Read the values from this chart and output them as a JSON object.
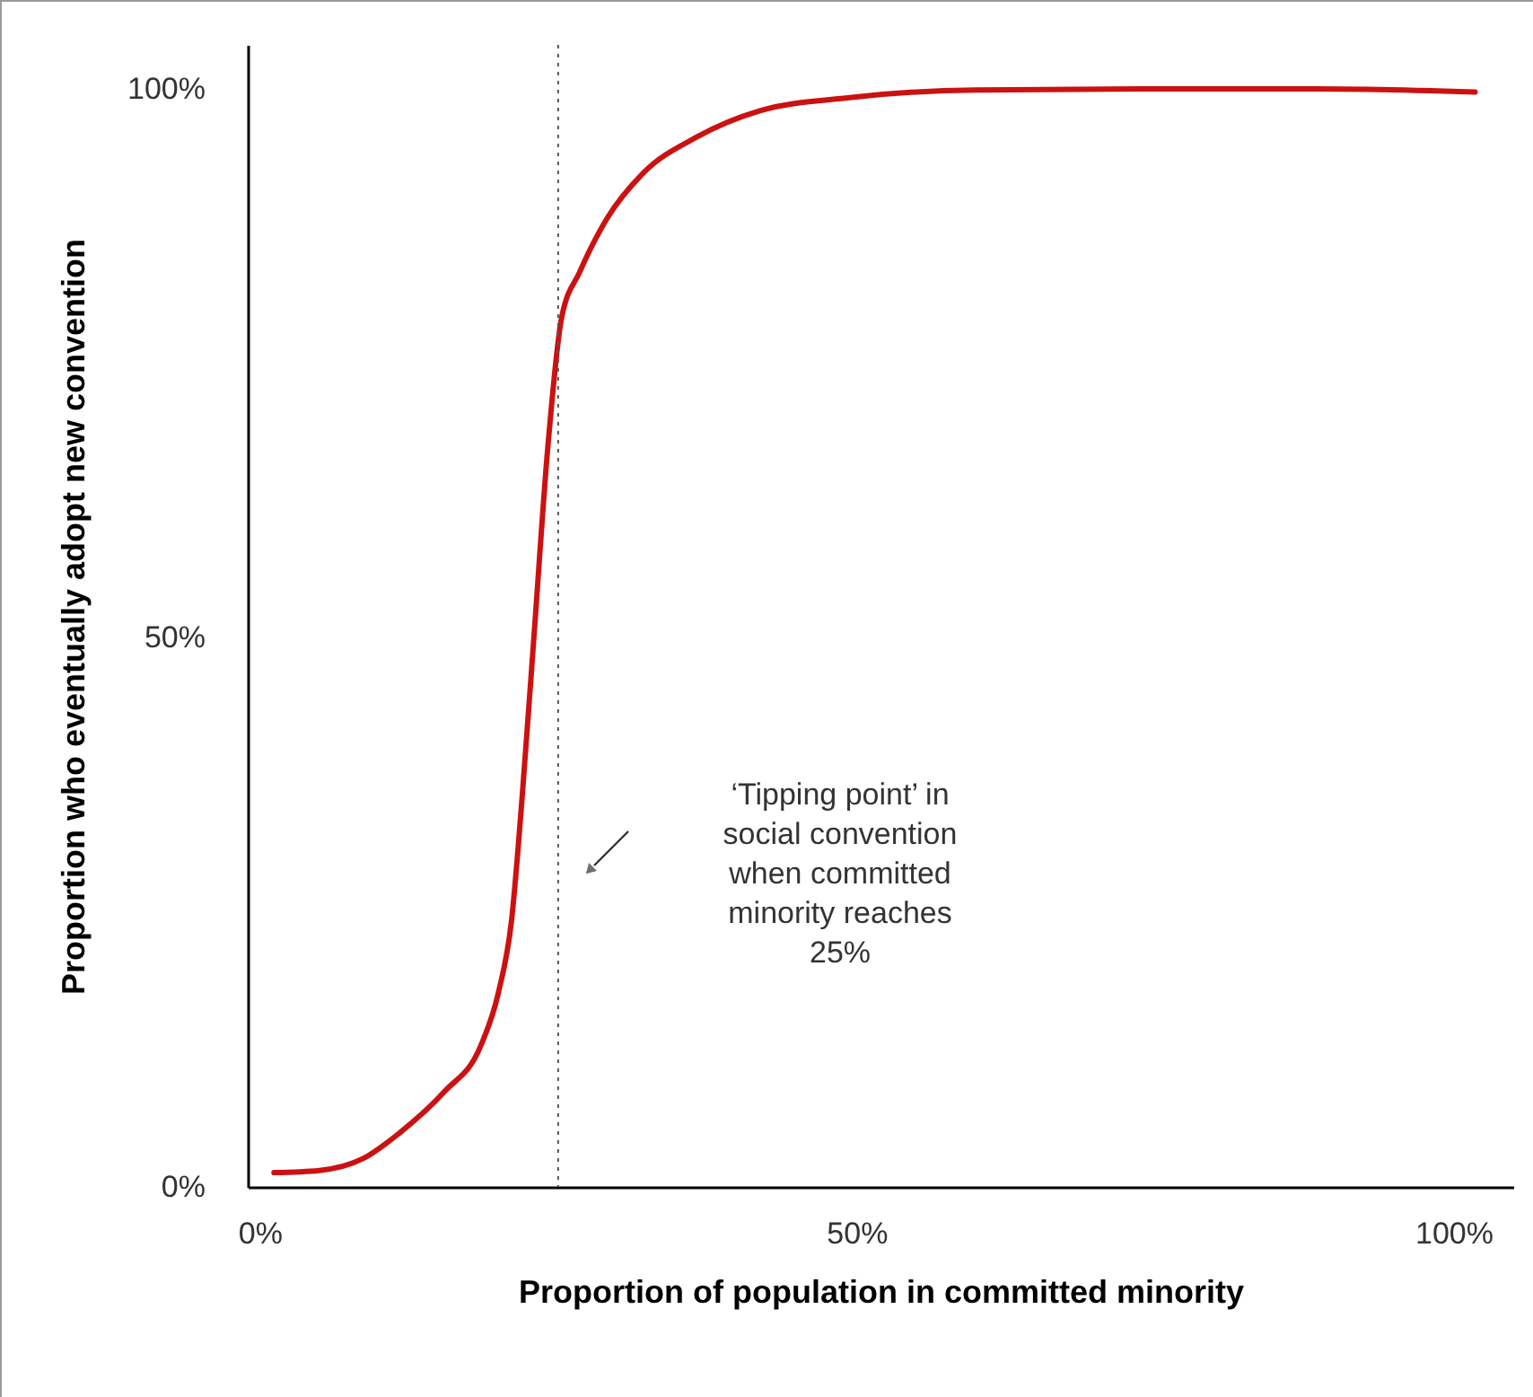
{
  "chart_data": {
    "type": "line",
    "xlabel": "Proportion of population in committed minority",
    "ylabel": "Proportion who eventually adopt new convention",
    "x": [
      1.2,
      5,
      8.7,
      11.7,
      15.5,
      18.5,
      20,
      21.1,
      22,
      23,
      24.1,
      25.3,
      26.8,
      29.1,
      32.1,
      36.6,
      41.9,
      49.4,
      60,
      75,
      88.6,
      101.8
    ],
    "series": [
      {
        "color": "#cc1111",
        "values": [
          1.3,
          1.5,
          2.6,
          4.9,
          8.7,
          12.8,
          17.7,
          24.3,
          35.7,
          50.5,
          66.9,
          79.2,
          83.3,
          88.2,
          92.3,
          95.6,
          98,
          99.2,
          99.9,
          100,
          100,
          99.7
        ]
      }
    ],
    "xlim": [
      -1,
      105
    ],
    "ylim": [
      0,
      104
    ],
    "xticks": [
      {
        "value": 0,
        "label": "0%"
      },
      {
        "value": 50,
        "label": "50%"
      },
      {
        "value": 100,
        "label": "100%"
      }
    ],
    "yticks": [
      {
        "value": 0,
        "label": "0%"
      },
      {
        "value": 50,
        "label": "50%"
      },
      {
        "value": 100,
        "label": "100%"
      }
    ],
    "grid": false,
    "marker": "none",
    "line_style": "solid",
    "ref_lines": [
      {
        "axis": "x",
        "value": 25,
        "color": "#555555",
        "line_style": "dotted"
      }
    ],
    "annotations": [
      "‘Tipping point’ in\nsocial convention\nwhen committed\nminority reaches\n25%"
    ]
  }
}
